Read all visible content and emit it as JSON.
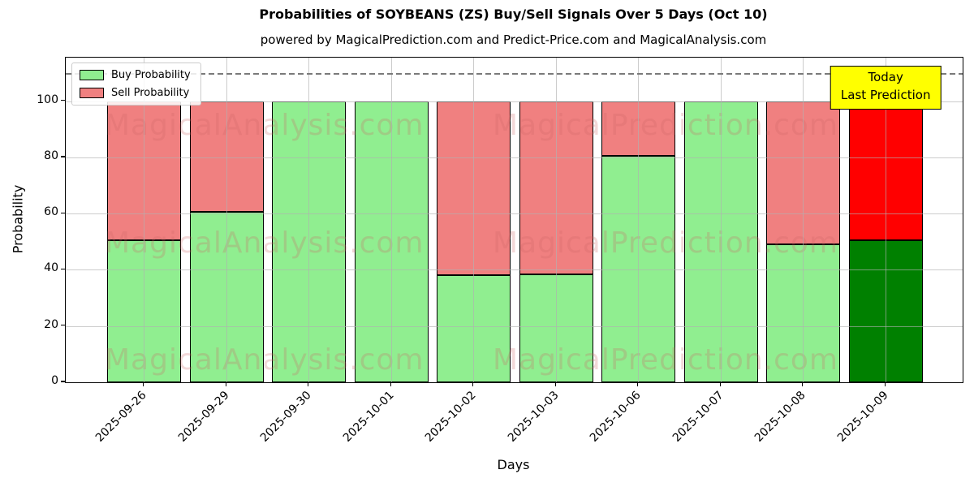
{
  "chart_data": {
    "type": "bar",
    "stacked": true,
    "title": "Probabilities of SOYBEANS (ZS) Buy/Sell Signals Over 5 Days (Oct 10)",
    "subtitle": "powered by MagicalPrediction.com and Predict-Price.com and MagicalAnalysis.com",
    "xlabel": "Days",
    "ylabel": "Probability",
    "categories": [
      "2025-09-26",
      "2025-09-29",
      "2025-09-30",
      "2025-10-01",
      "2025-10-02",
      "2025-10-03",
      "2025-10-06",
      "2025-10-07",
      "2025-10-08",
      "2025-10-09"
    ],
    "series": [
      {
        "name": "Buy Probability",
        "color": "#90EE90",
        "values": [
          50.5,
          60.5,
          100,
          100,
          38,
          38.5,
          80.5,
          100,
          49,
          50.5
        ]
      },
      {
        "name": "Sell Probability",
        "color": "#F08080",
        "values": [
          49.5,
          39.5,
          0,
          0,
          62,
          61.5,
          19.5,
          0,
          51,
          49.5
        ]
      }
    ],
    "today_bar": {
      "category": "2025-10-09",
      "buy_color": "#008000",
      "sell_color": "#FF0000"
    },
    "ylim": [
      0,
      115.5
    ],
    "yticks": [
      0,
      20,
      40,
      60,
      80,
      100
    ],
    "grid": true,
    "dashed_line_y": 110,
    "legend_position": "upper-left",
    "annotation": {
      "lines": [
        "Today",
        "Last Prediction"
      ],
      "bg_color": "#FFFF00"
    },
    "watermarks": {
      "left": "MagicalAnalysis.com",
      "right": "MagicalPrediction.com",
      "rows": 3
    }
  }
}
